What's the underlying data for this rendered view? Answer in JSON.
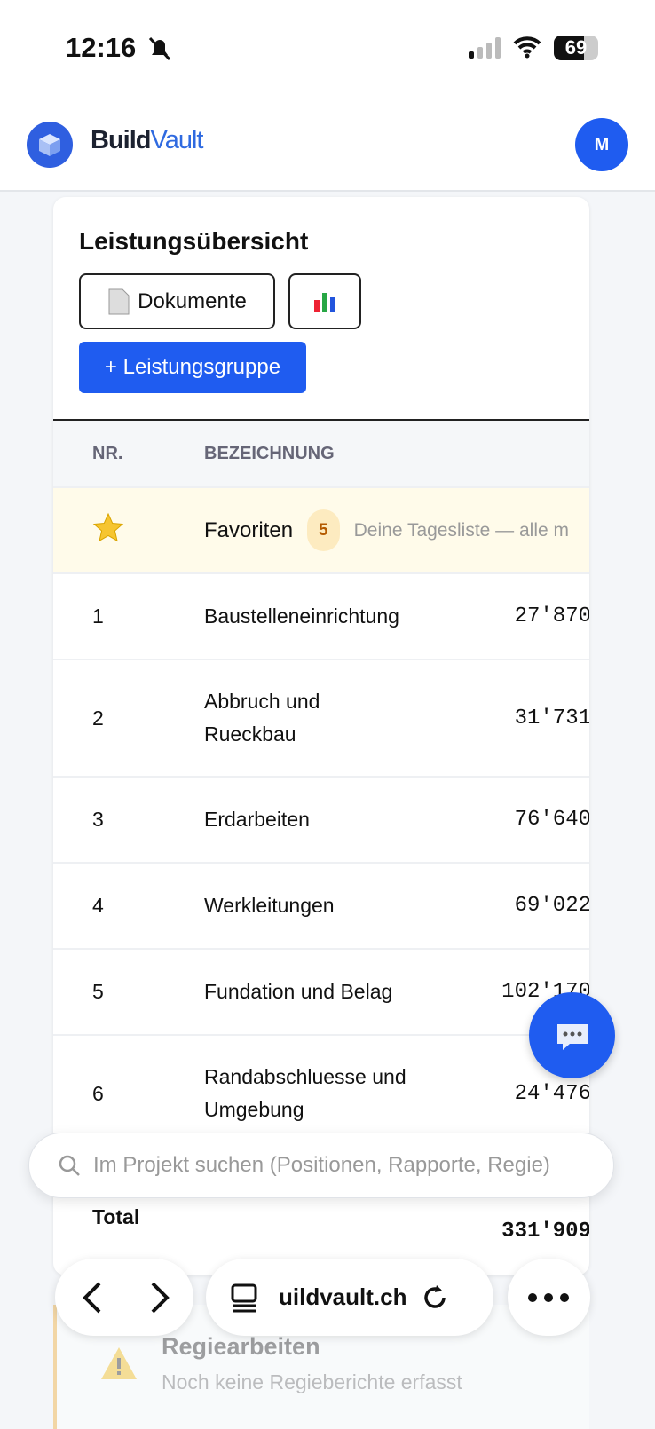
{
  "status_bar": {
    "time": "12:16",
    "battery": "69"
  },
  "header": {
    "brand_prefix": "Build",
    "brand_suffix": "Vault",
    "avatar": "M"
  },
  "card": {
    "title": "Leistungsübersicht",
    "documents_button": "Dokumente",
    "add_button": "+ Leistungsgruppe"
  },
  "table": {
    "columns": [
      "NR.",
      "BEZEICHNUNG"
    ],
    "favorites": {
      "label": "Favoriten",
      "count": "5",
      "note": "Deine Tagesliste — alle m"
    },
    "rows": [
      [
        "1",
        "Baustelleneinrichtung",
        "27'870"
      ],
      [
        "2",
        "Abbruch und Rueckbau",
        "31'731"
      ],
      [
        "3",
        "Erdarbeiten",
        "76'640"
      ],
      [
        "4",
        "Werkleitungen",
        "69'022"
      ],
      [
        "5",
        "Fundation und Belag",
        "102'170"
      ],
      [
        "6",
        "Randabschluesse und Umgebung",
        "24'476"
      ]
    ],
    "total": {
      "label": "Total",
      "value": "331'909"
    }
  },
  "search": {
    "placeholder": "Im Projekt suchen (Positionen, Rapporte, Regie)"
  },
  "browser": {
    "url": "uildvault.ch"
  },
  "bottom_card": {
    "title": "Regiearbeiten",
    "subtitle": "Noch keine Regieberichte erfasst"
  }
}
